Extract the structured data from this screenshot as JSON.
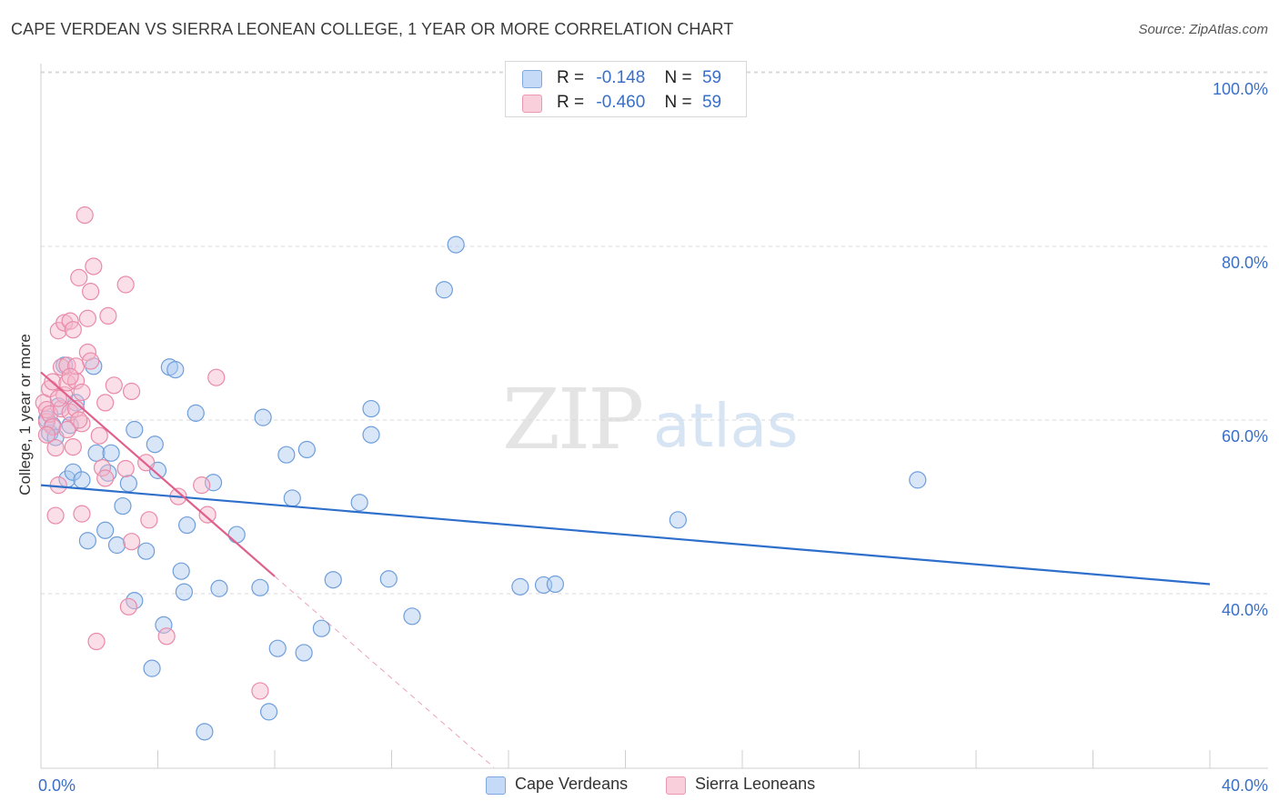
{
  "header": {
    "title": "CAPE VERDEAN VS SIERRA LEONEAN COLLEGE, 1 YEAR OR MORE CORRELATION CHART",
    "source": "Source: ZipAtlas.com"
  },
  "watermark": {
    "zip": "ZIP",
    "atlas": "atlas"
  },
  "legend_top": [
    {
      "r_label": "R =",
      "r_value": "-0.148",
      "n_label": "N =",
      "n_value": "59",
      "color": "#a9c8f0"
    },
    {
      "r_label": "R =",
      "r_value": "-0.460",
      "n_label": "N =",
      "n_value": "59",
      "color": "#f5b8cb"
    }
  ],
  "legend_bottom": [
    {
      "label": "Cape Verdeans",
      "color": "#a9c8f0"
    },
    {
      "label": "Sierra Leoneans",
      "color": "#f5b8cb"
    }
  ],
  "chart_data": {
    "type": "scatter",
    "title": "CAPE VERDEAN VS SIERRA LEONEAN COLLEGE, 1 YEAR OR MORE CORRELATION CHART",
    "xlabel": "",
    "ylabel": "College, 1 year or more",
    "xlim": [
      0,
      40
    ],
    "ylim": [
      20,
      102
    ],
    "x_ticks_labels": [
      "0.0%",
      "40.0%"
    ],
    "y_ticks": [
      40,
      60,
      80,
      100
    ],
    "y_tick_labels": [
      "40.0%",
      "60.0%",
      "80.0%",
      "100.0%"
    ],
    "colors": {
      "blue_fill": "#a9c8f0",
      "blue_stroke": "#6f9edb",
      "blue_line": "#2f6fcc",
      "pink_fill": "#f5b8cb",
      "pink_stroke": "#e98aa8",
      "pink_line": "#e0608c"
    },
    "series": [
      {
        "name": "Cape Verdeans",
        "points": [
          [
            0.2,
            60.1
          ],
          [
            0.3,
            58.5
          ],
          [
            0.4,
            59.4
          ],
          [
            0.6,
            61.6
          ],
          [
            0.8,
            66.3
          ],
          [
            0.9,
            53.2
          ],
          [
            1.0,
            59.4
          ],
          [
            1.1,
            54.0
          ],
          [
            1.4,
            53.1
          ],
          [
            1.6,
            46.1
          ],
          [
            1.8,
            66.2
          ],
          [
            1.9,
            56.2
          ],
          [
            2.2,
            47.3
          ],
          [
            2.4,
            56.2
          ],
          [
            2.3,
            53.9
          ],
          [
            2.6,
            45.6
          ],
          [
            2.8,
            50.1
          ],
          [
            3.0,
            52.7
          ],
          [
            3.2,
            58.9
          ],
          [
            3.2,
            39.2
          ],
          [
            3.6,
            44.9
          ],
          [
            3.8,
            31.4
          ],
          [
            3.9,
            57.2
          ],
          [
            4.0,
            54.2
          ],
          [
            4.2,
            36.4
          ],
          [
            4.4,
            66.1
          ],
          [
            4.6,
            65.8
          ],
          [
            4.8,
            42.6
          ],
          [
            4.9,
            40.2
          ],
          [
            5.0,
            47.9
          ],
          [
            5.3,
            60.8
          ],
          [
            5.6,
            24.1
          ],
          [
            5.9,
            52.8
          ],
          [
            6.1,
            40.6
          ],
          [
            6.7,
            46.8
          ],
          [
            7.5,
            40.7
          ],
          [
            7.6,
            60.3
          ],
          [
            7.8,
            26.4
          ],
          [
            8.1,
            33.7
          ],
          [
            8.4,
            56.0
          ],
          [
            8.6,
            51.0
          ],
          [
            9.0,
            33.2
          ],
          [
            9.1,
            56.6
          ],
          [
            9.6,
            36.0
          ],
          [
            10.0,
            41.6
          ],
          [
            10.9,
            50.5
          ],
          [
            11.3,
            61.3
          ],
          [
            11.3,
            58.3
          ],
          [
            11.9,
            41.7
          ],
          [
            12.7,
            37.4
          ],
          [
            13.8,
            75.0
          ],
          [
            14.2,
            80.2
          ],
          [
            16.4,
            40.8
          ],
          [
            17.2,
            41.0
          ],
          [
            17.6,
            41.1
          ],
          [
            21.8,
            48.5
          ],
          [
            30.0,
            53.1
          ],
          [
            0.5,
            58.0
          ],
          [
            1.2,
            62.0
          ]
        ]
      },
      {
        "name": "Sierra Leoneans",
        "points": [
          [
            0.1,
            62.0
          ],
          [
            0.2,
            59.8
          ],
          [
            0.2,
            61.2
          ],
          [
            0.3,
            63.6
          ],
          [
            0.3,
            60.7
          ],
          [
            0.4,
            64.4
          ],
          [
            0.5,
            56.8
          ],
          [
            0.5,
            49.0
          ],
          [
            0.6,
            70.3
          ],
          [
            0.6,
            52.5
          ],
          [
            0.7,
            66.1
          ],
          [
            0.7,
            61.3
          ],
          [
            0.8,
            62.9
          ],
          [
            0.8,
            71.2
          ],
          [
            0.9,
            64.3
          ],
          [
            0.9,
            66.3
          ],
          [
            1.0,
            71.4
          ],
          [
            1.0,
            60.9
          ],
          [
            1.1,
            70.4
          ],
          [
            1.1,
            56.9
          ],
          [
            1.2,
            64.5
          ],
          [
            1.2,
            61.3
          ],
          [
            1.2,
            66.2
          ],
          [
            1.3,
            76.4
          ],
          [
            1.4,
            59.6
          ],
          [
            1.4,
            49.2
          ],
          [
            1.4,
            63.2
          ],
          [
            1.5,
            83.6
          ],
          [
            1.6,
            67.8
          ],
          [
            1.6,
            71.7
          ],
          [
            1.7,
            74.8
          ],
          [
            1.7,
            66.8
          ],
          [
            1.8,
            77.7
          ],
          [
            1.9,
            34.5
          ],
          [
            2.0,
            58.2
          ],
          [
            2.1,
            54.5
          ],
          [
            2.2,
            53.3
          ],
          [
            2.2,
            62.0
          ],
          [
            2.3,
            72.0
          ],
          [
            2.5,
            64.0
          ],
          [
            2.9,
            75.6
          ],
          [
            2.9,
            54.4
          ],
          [
            3.0,
            38.5
          ],
          [
            3.1,
            46.0
          ],
          [
            3.1,
            63.3
          ],
          [
            3.6,
            55.1
          ],
          [
            3.7,
            48.5
          ],
          [
            4.3,
            35.1
          ],
          [
            4.7,
            51.2
          ],
          [
            5.5,
            52.5
          ],
          [
            5.7,
            49.1
          ],
          [
            6.0,
            64.9
          ],
          [
            7.5,
            28.8
          ],
          [
            0.4,
            59.2
          ],
          [
            0.6,
            62.5
          ],
          [
            1.0,
            65.0
          ],
          [
            1.3,
            60.0
          ],
          [
            0.2,
            58.3
          ],
          [
            0.9,
            58.9
          ]
        ]
      }
    ],
    "trendlines": [
      {
        "series": "Cape Verdeans",
        "x": [
          0,
          40
        ],
        "y": [
          52.5,
          41.1
        ]
      },
      {
        "series": "Sierra Leoneans",
        "x": [
          0,
          8
        ],
        "y": [
          65.5,
          42.0
        ],
        "dashed_extension_to": [
          15.5,
          20.0
        ]
      }
    ]
  }
}
